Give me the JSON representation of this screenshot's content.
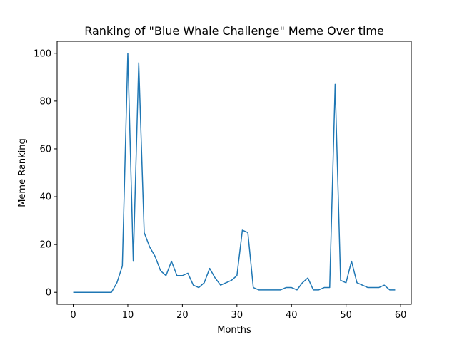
{
  "chart_data": {
    "type": "line",
    "title": "Ranking of \"Blue Whale Challenge\" Meme Over time",
    "xlabel": "Months",
    "ylabel": "Meme Ranking",
    "xlim": [
      -2.95,
      61.95
    ],
    "ylim": [
      -5,
      105
    ],
    "xticks": [
      0,
      10,
      20,
      30,
      40,
      50,
      60
    ],
    "yticks": [
      0,
      20,
      40,
      60,
      80,
      100
    ],
    "grid": false,
    "line_color": "#1f77b4",
    "series": [
      {
        "x": [
          0,
          1,
          2,
          3,
          4,
          5,
          6,
          7,
          8,
          9,
          10,
          11,
          12,
          13,
          14,
          15,
          16,
          17,
          18,
          19,
          20,
          21,
          22,
          23,
          24,
          25,
          26,
          27,
          28,
          29,
          30,
          31,
          32,
          33,
          34,
          35,
          36,
          37,
          38,
          39,
          40,
          41,
          42,
          43,
          44,
          45,
          46,
          47,
          48,
          49,
          50,
          51,
          52,
          53,
          54,
          55,
          56,
          57,
          58,
          59
        ],
        "values": [
          0,
          0,
          0,
          0,
          0,
          0,
          0,
          0,
          4,
          11,
          100,
          13,
          96,
          25,
          19,
          15,
          9,
          7,
          13,
          7,
          7,
          8,
          3,
          2,
          4,
          10,
          6,
          3,
          4,
          5,
          7,
          26,
          25,
          2,
          1,
          1,
          1,
          1,
          1,
          2,
          2,
          1,
          4,
          6,
          1,
          1,
          2,
          2,
          87,
          5,
          4,
          13,
          4,
          3,
          2,
          2,
          2,
          3,
          1,
          1
        ]
      }
    ]
  }
}
